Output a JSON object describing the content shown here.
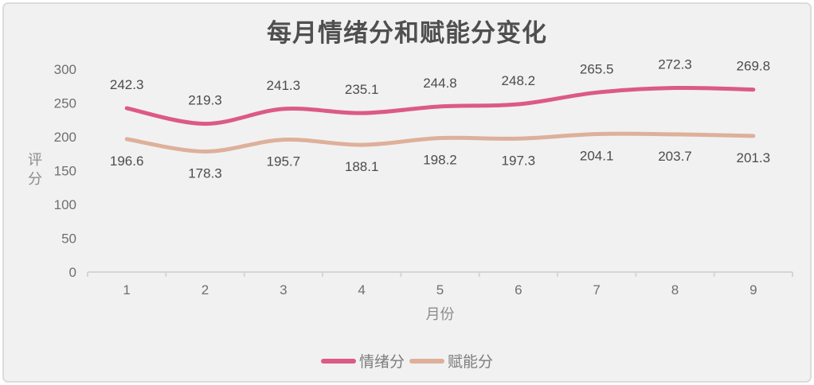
{
  "chart_data": {
    "type": "line",
    "title": "每月情绪分和赋能分变化",
    "xlabel": "月份",
    "ylabel": "评分",
    "categories": [
      "1",
      "2",
      "3",
      "4",
      "5",
      "6",
      "7",
      "8",
      "9"
    ],
    "series": [
      {
        "name": "情绪分",
        "color": "#dc5a85",
        "values": [
          242.3,
          219.3,
          241.3,
          235.1,
          244.8,
          248.2,
          265.5,
          272.3,
          269.8
        ],
        "label_position": "above"
      },
      {
        "name": "赋能分",
        "color": "#deb09a",
        "values": [
          196.6,
          178.3,
          195.7,
          188.1,
          198.2,
          197.3,
          204.1,
          203.7,
          201.3
        ],
        "label_position": "below"
      }
    ],
    "ylim": [
      0,
      300
    ],
    "yticks": [
      0,
      50,
      100,
      150,
      200,
      250,
      300
    ],
    "grid": false,
    "smooth": true,
    "legend_position": "bottom"
  },
  "colors": {
    "background": "#f1f1f2",
    "border": "#dcdcde",
    "axis_line": "#d5d5d8",
    "tick_label": "#6f6f6f",
    "data_label": "#4c4c4c",
    "title_text": "#4f4f4f",
    "axis_name_text": "#8c8c8c",
    "legend_text": "#7d7d7d"
  }
}
